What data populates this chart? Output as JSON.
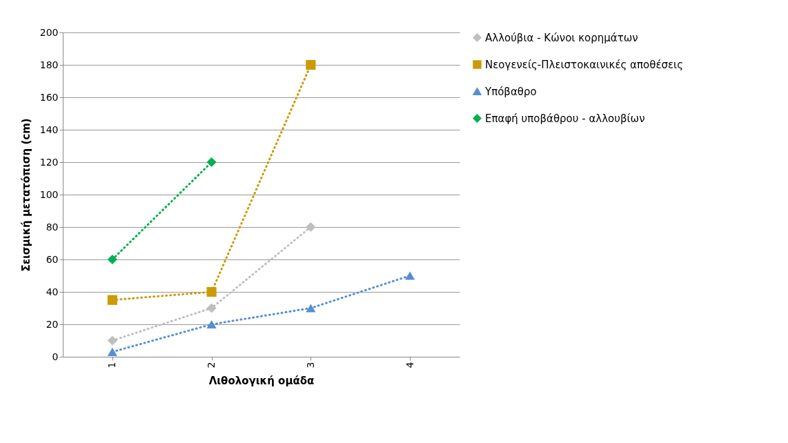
{
  "chart_data": {
    "type": "line",
    "xlabel": "Λιθολογική ομάδα",
    "ylabel": "Σεισμική μετατόπιση (cm)",
    "categories": [
      "1",
      "2",
      "3",
      "4"
    ],
    "ylim": [
      0,
      200
    ],
    "yticks": [
      0,
      20,
      40,
      60,
      80,
      100,
      120,
      140,
      160,
      180,
      200
    ],
    "grid": "y",
    "legend": "right",
    "line_style": "dotted",
    "series": [
      {
        "name": "Αλλούβια - Κώνοι κορημάτων",
        "color": "#bfbfbf",
        "marker": "diamond",
        "values": [
          10,
          30,
          80,
          null
        ]
      },
      {
        "name": "Νεογενείς-Πλειστοκαινικές αποθέσεις",
        "color": "#cc9a06",
        "marker": "square",
        "values": [
          35,
          40,
          180,
          null
        ]
      },
      {
        "name": "Υπόβαθρο",
        "color": "#558ed5",
        "marker": "triangle",
        "values": [
          3,
          20,
          30,
          50
        ]
      },
      {
        "name": "Επαφή υποβάθρου - αλλουβίων",
        "color": "#00b050",
        "marker": "diamond",
        "values": [
          60,
          120,
          null,
          null
        ]
      }
    ]
  }
}
